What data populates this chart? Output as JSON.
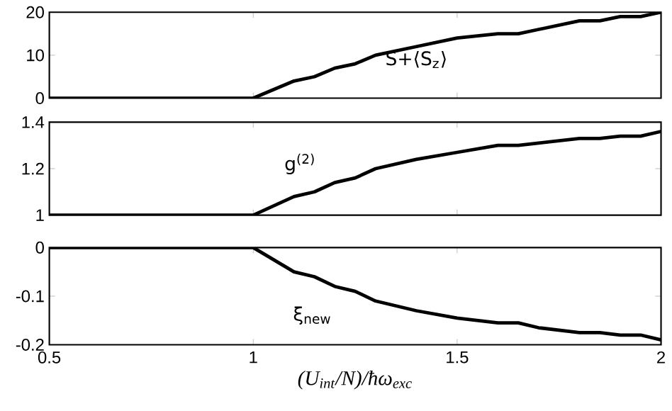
{
  "chart_data": [
    {
      "type": "line",
      "x": [
        0.5,
        1,
        1.1,
        1.15,
        1.2,
        1.25,
        1.3,
        1.4,
        1.5,
        1.6,
        1.65,
        1.7,
        1.8,
        1.85,
        1.9,
        1.95,
        2
      ],
      "values": [
        0,
        0,
        4,
        5,
        7,
        8,
        10,
        12,
        14,
        15,
        15,
        16,
        18,
        18,
        19,
        19,
        20
      ],
      "color": "#000000",
      "xlim": [
        0.5,
        2
      ],
      "xticks": [
        {
          "value": 0.5,
          "label": null
        },
        {
          "value": 1,
          "label": null
        },
        {
          "value": 1.5,
          "label": null
        },
        {
          "value": 2,
          "label": null
        }
      ],
      "ylim": [
        0,
        20
      ],
      "yticks": [
        0,
        10,
        20
      ],
      "tick_labels": "y",
      "annotations": [
        "S+⟨S$_{z}$⟩"
      ]
    },
    {
      "type": "line",
      "x": [
        0.5,
        1,
        1.1,
        1.15,
        1.2,
        1.25,
        1.3,
        1.4,
        1.5,
        1.6,
        1.65,
        1.7,
        1.8,
        1.85,
        1.9,
        1.95,
        2
      ],
      "values": [
        1,
        1,
        1.08,
        1.1,
        1.14,
        1.16,
        1.2,
        1.24,
        1.27,
        1.3,
        1.3,
        1.31,
        1.33,
        1.33,
        1.34,
        1.34,
        1.36
      ],
      "color": "#000000",
      "xlim": [
        0.5,
        2
      ],
      "xticks": [
        {
          "value": 0.5,
          "label": null
        },
        {
          "value": 1,
          "label": null
        },
        {
          "value": 1.5,
          "label": null
        },
        {
          "value": 2,
          "label": null
        }
      ],
      "ylim": [
        1,
        1.4
      ],
      "yticks": [
        1,
        1.2,
        1.4
      ],
      "tick_labels": "y",
      "annotations": [
        "g$^{(2)}$"
      ]
    },
    {
      "type": "line",
      "x": [
        0.5,
        1,
        1.1,
        1.15,
        1.2,
        1.25,
        1.3,
        1.4,
        1.5,
        1.6,
        1.65,
        1.7,
        1.8,
        1.85,
        1.9,
        1.95,
        2
      ],
      "values": [
        0,
        0,
        -0.05,
        -0.06,
        -0.08,
        -0.09,
        -0.11,
        -0.13,
        -0.145,
        -0.155,
        -0.155,
        -0.165,
        -0.175,
        -0.175,
        -0.18,
        -0.18,
        -0.19
      ],
      "color": "#000000",
      "xlim": [
        0.5,
        2
      ],
      "xticks": [
        0.5,
        1,
        1.5,
        2
      ],
      "ylim": [
        -0.2,
        0
      ],
      "yticks": [
        -0.2,
        -0.1,
        0
      ],
      "xlabel": "(U$_{int}$/N)/ħω$_{exc}$",
      "annotations": [
        "ξ$_{new}$"
      ]
    }
  ]
}
